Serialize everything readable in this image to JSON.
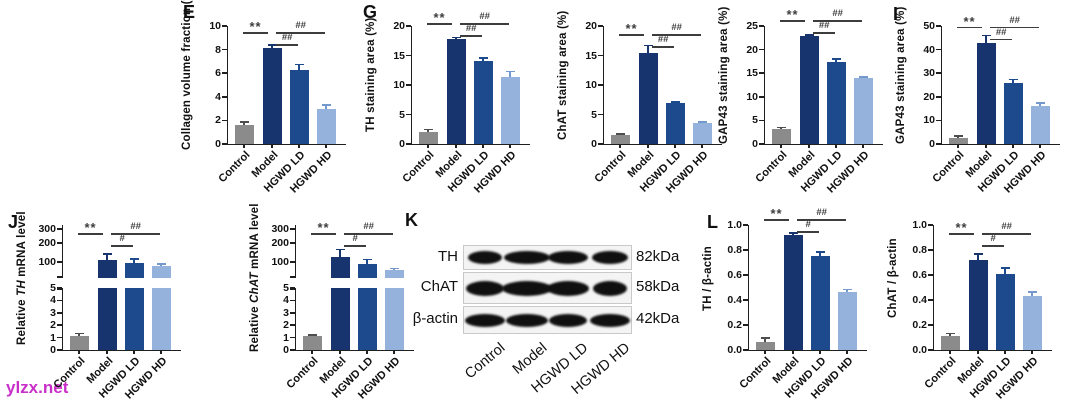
{
  "figure": {
    "watermark": "ylzx.net",
    "watermark_color": "#c92fc9",
    "axis_color": "#1f1f1f"
  },
  "panel_labels": {
    "e": "E",
    "g": "G",
    "i": "I",
    "j": "J",
    "k": "K",
    "l": "L"
  },
  "groups": [
    "Control",
    "Model",
    "HGWD LD",
    "HGWD HD"
  ],
  "group_colors": [
    "#8b8b8b",
    "#17346f",
    "#1d4a8d",
    "#94b2dc"
  ],
  "error_colors": [
    "#4d4d4d",
    "#17346f",
    "#1d4a8d",
    "#7499cc"
  ],
  "western_blot": {
    "rows": [
      {
        "protein": "TH",
        "weight": "82kDa"
      },
      {
        "protein": "ChAT",
        "weight": "58kDa"
      },
      {
        "protein": "β-actin",
        "weight": "42kDa"
      }
    ],
    "lanes": [
      "Control",
      "Model",
      "HGWD LD",
      "HGWD HD"
    ]
  },
  "chart_data": [
    {
      "id": "collagen",
      "panel": "E",
      "type": "bar",
      "ylabel": "Collagen volume fraction (%)",
      "ymax": 10,
      "yticks": [
        "0",
        "2",
        "4",
        "6",
        "8",
        "10"
      ],
      "categories": [
        "Control",
        "Model",
        "HGWD LD",
        "HGWD HD"
      ],
      "values": [
        1.6,
        8.1,
        6.3,
        3.0
      ],
      "errors": [
        0.3,
        0.3,
        0.45,
        0.3
      ],
      "sig": [
        {
          "label": "**",
          "from": 0,
          "to": 1,
          "level": "top"
        },
        {
          "label": "##",
          "from": 1,
          "to": 3,
          "level": "top"
        },
        {
          "label": "##",
          "from": 1,
          "to": 2,
          "level": "mid"
        }
      ]
    },
    {
      "id": "th-staining",
      "panel": "G",
      "type": "bar",
      "ylabel": "TH staining area (%)",
      "ymax": 20,
      "yticks": [
        "0",
        "5",
        "10",
        "15",
        "20"
      ],
      "categories": [
        "Control",
        "Model",
        "HGWD LD",
        "HGWD HD"
      ],
      "values": [
        2.0,
        17.8,
        14.0,
        11.3
      ],
      "errors": [
        0.5,
        0.3,
        0.6,
        1.0
      ],
      "sig": [
        {
          "label": "**",
          "from": 0,
          "to": 1,
          "level": "top"
        },
        {
          "label": "##",
          "from": 1,
          "to": 3,
          "level": "top"
        },
        {
          "label": "##",
          "from": 1,
          "to": 2,
          "level": "mid"
        }
      ]
    },
    {
      "id": "chat-staining",
      "panel": "G",
      "type": "bar",
      "ylabel": "ChAT staining area (%)",
      "ymax": 20,
      "yticks": [
        "0",
        "5",
        "10",
        "15",
        "20"
      ],
      "categories": [
        "Control",
        "Model",
        "HGWD LD",
        "HGWD HD"
      ],
      "values": [
        1.5,
        15.4,
        6.9,
        3.6
      ],
      "errors": [
        0.2,
        1.3,
        0.3,
        0.2
      ],
      "sig": [
        {
          "label": "**",
          "from": 0,
          "to": 1,
          "level": "top"
        },
        {
          "label": "##",
          "from": 1,
          "to": 3,
          "level": "top"
        },
        {
          "label": "##",
          "from": 1,
          "to": 2,
          "level": "mid"
        }
      ]
    },
    {
      "id": "gap43-staining-g",
      "panel": "G",
      "type": "bar",
      "ylabel": "GAP43 staining area (%)",
      "ymax": 25,
      "yticks": [
        "0",
        "5",
        "10",
        "15",
        "20",
        "25"
      ],
      "categories": [
        "Control",
        "Model",
        "HGWD LD",
        "HGWD HD"
      ],
      "values": [
        3.2,
        22.8,
        17.4,
        13.9
      ],
      "errors": [
        0.3,
        0.4,
        0.7,
        0.3
      ],
      "sig": [
        {
          "label": "**",
          "from": 0,
          "to": 1,
          "level": "top"
        },
        {
          "label": "##",
          "from": 1,
          "to": 3,
          "level": "top"
        },
        {
          "label": "##",
          "from": 1,
          "to": 2,
          "level": "mid"
        }
      ]
    },
    {
      "id": "gap43-staining-i",
      "panel": "I",
      "type": "bar",
      "ylabel": "GAP43 staining area (%)",
      "ymax": 50,
      "yticks": [
        "0",
        "10",
        "20",
        "30",
        "40",
        "50"
      ],
      "categories": [
        "Control",
        "Model",
        "HGWD LD",
        "HGWD HD"
      ],
      "values": [
        2.5,
        43.0,
        26.0,
        16.2
      ],
      "errors": [
        1.0,
        3.0,
        1.5,
        1.3
      ],
      "sig": [
        {
          "label": "**",
          "from": 0,
          "to": 1,
          "level": "top"
        },
        {
          "label": "##",
          "from": 1,
          "to": 3,
          "level": "top"
        },
        {
          "label": "##",
          "from": 1,
          "to": 2,
          "level": "mid"
        }
      ]
    },
    {
      "id": "th-mrna",
      "panel": "J",
      "type": "bar-broken",
      "ylabel_parts": [
        {
          "t": "Relative "
        },
        {
          "t": "TH",
          "i": true
        },
        {
          "t": " mRNA level"
        }
      ],
      "lower_max": 5,
      "lower_ticks": [
        "0",
        "1",
        "2",
        "3",
        "4",
        "5"
      ],
      "upper_ticks": [
        "100",
        "200",
        "300"
      ],
      "upper_max": 300,
      "categories": [
        "Control",
        "Model",
        "HGWD LD",
        "HGWD HD"
      ],
      "values": [
        1.1,
        110,
        95,
        75
      ],
      "errors": [
        0.25,
        35,
        22,
        15
      ],
      "sig": [
        {
          "label": "**",
          "from": 0,
          "to": 1,
          "level": "top"
        },
        {
          "label": "##",
          "from": 1,
          "to": 3,
          "level": "top"
        },
        {
          "label": "#",
          "from": 1,
          "to": 2,
          "level": "mid"
        }
      ]
    },
    {
      "id": "chat-mrna",
      "panel": "J",
      "type": "bar-broken",
      "ylabel_parts": [
        {
          "t": "Relative "
        },
        {
          "t": "ChAT",
          "i": true
        },
        {
          "t": " mRNA level"
        }
      ],
      "lower_max": 5,
      "lower_ticks": [
        "0",
        "1",
        "2",
        "3",
        "4",
        "5"
      ],
      "upper_ticks": [
        "100",
        "200",
        "300"
      ],
      "upper_max": 300,
      "categories": [
        "Control",
        "Model",
        "HGWD LD",
        "HGWD HD"
      ],
      "values": [
        1.1,
        125,
        90,
        50
      ],
      "errors": [
        0.15,
        45,
        25,
        10
      ],
      "sig": [
        {
          "label": "**",
          "from": 0,
          "to": 1,
          "level": "top"
        },
        {
          "label": "##",
          "from": 1,
          "to": 3,
          "level": "top"
        },
        {
          "label": "#",
          "from": 1,
          "to": 2,
          "level": "mid"
        }
      ]
    },
    {
      "id": "th-actin",
      "panel": "L",
      "type": "bar",
      "ylabel": "TH / β-actin",
      "ymax": 1.0,
      "yticks": [
        "0.0",
        "0.2",
        "0.4",
        "0.6",
        "0.8",
        "1.0"
      ],
      "categories": [
        "Control",
        "Model",
        "HGWD LD",
        "HGWD HD"
      ],
      "values": [
        0.065,
        0.92,
        0.755,
        0.465
      ],
      "errors": [
        0.035,
        0.02,
        0.03,
        0.02
      ],
      "sig": [
        {
          "label": "**",
          "from": 0,
          "to": 1,
          "level": "top"
        },
        {
          "label": "##",
          "from": 1,
          "to": 3,
          "level": "top"
        },
        {
          "label": "#",
          "from": 1,
          "to": 2,
          "level": "mid"
        }
      ]
    },
    {
      "id": "chat-actin",
      "panel": "L",
      "type": "bar",
      "ylabel": "ChAT / β-actin",
      "ymax": 1.0,
      "yticks": [
        "0.0",
        "0.2",
        "0.4",
        "0.6",
        "0.8",
        "1.0"
      ],
      "categories": [
        "Control",
        "Model",
        "HGWD LD",
        "HGWD HD"
      ],
      "values": [
        0.11,
        0.72,
        0.61,
        0.435
      ],
      "errors": [
        0.025,
        0.05,
        0.05,
        0.03
      ],
      "sig": [
        {
          "label": "**",
          "from": 0,
          "to": 1,
          "level": "top"
        },
        {
          "label": "##",
          "from": 1,
          "to": 3,
          "level": "top"
        },
        {
          "label": "#",
          "from": 1,
          "to": 2,
          "level": "mid"
        }
      ]
    }
  ]
}
